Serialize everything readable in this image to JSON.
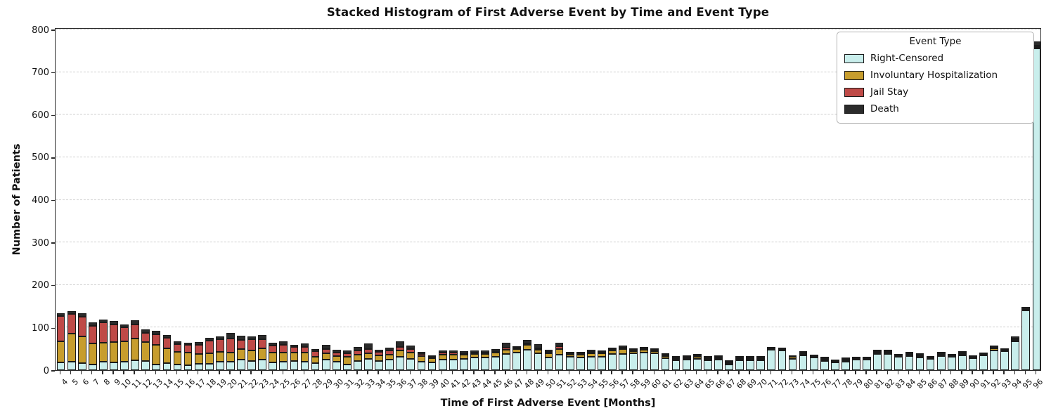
{
  "title": "Stacked Histogram of First Adverse Event by Time and Event Type",
  "xlabel": "Time of First Adverse Event [Months]",
  "ylabel": "Number of Patients",
  "legend": {
    "title": "Event Type",
    "items": [
      {
        "label": "Right-Censored",
        "color": "#c9eeec"
      },
      {
        "label": "Involuntary Hospitalization",
        "color": "#c79d2d"
      },
      {
        "label": "Jail Stay",
        "color": "#bf4a47"
      },
      {
        "label": "Death",
        "color": "#2b2b2b"
      }
    ]
  },
  "chart_data": {
    "type": "bar",
    "stacked": true,
    "title": "Stacked Histogram of First Adverse Event by Time and Event Type",
    "xlabel": "Time of First Adverse Event [Months]",
    "ylabel": "Number of Patients",
    "ylim": [
      0,
      800
    ],
    "y_ticks": [
      0,
      100,
      200,
      300,
      400,
      500,
      600,
      700,
      800
    ],
    "grid": "horizontal-dashed",
    "legend_position": "upper right",
    "x": [
      4,
      5,
      6,
      7,
      8,
      9,
      10,
      11,
      12,
      13,
      14,
      15,
      16,
      17,
      18,
      19,
      20,
      21,
      22,
      23,
      24,
      25,
      26,
      27,
      28,
      29,
      30,
      31,
      32,
      33,
      34,
      35,
      36,
      37,
      38,
      39,
      40,
      41,
      42,
      43,
      44,
      45,
      46,
      47,
      48,
      49,
      50,
      51,
      52,
      53,
      54,
      55,
      56,
      57,
      58,
      59,
      60,
      61,
      62,
      63,
      64,
      65,
      66,
      67,
      68,
      69,
      70,
      71,
      72,
      73,
      74,
      75,
      76,
      77,
      78,
      79,
      80,
      81,
      82,
      83,
      84,
      85,
      86,
      87,
      88,
      89,
      90,
      91,
      92,
      93,
      94,
      95,
      96
    ],
    "series": [
      {
        "name": "Right-Censored",
        "color": "#c9eeec",
        "values": [
          18,
          19,
          17,
          14,
          20,
          18,
          19,
          23,
          21,
          14,
          17,
          14,
          12,
          15,
          15,
          19,
          20,
          24,
          21,
          24,
          18,
          20,
          22,
          20,
          16,
          24,
          19,
          14,
          22,
          26,
          22,
          25,
          31,
          27,
          20,
          18,
          24,
          25,
          26,
          29,
          29,
          31,
          38,
          41,
          48,
          40,
          30,
          36,
          31,
          30,
          32,
          31,
          38,
          38,
          40,
          42,
          40,
          28,
          23,
          24,
          27,
          23,
          24,
          14,
          23,
          23,
          23,
          48,
          47,
          27,
          34,
          30,
          22,
          18,
          20,
          25,
          25,
          38,
          38,
          32,
          33,
          29,
          27,
          33,
          31,
          35,
          28,
          34,
          47,
          44,
          67,
          140,
          755
        ]
      },
      {
        "name": "Involuntary Hospitalization",
        "color": "#c79d2d",
        "values": [
          49,
          66,
          63,
          49,
          44,
          48,
          49,
          51,
          45,
          46,
          35,
          29,
          29,
          23,
          25,
          24,
          22,
          25,
          26,
          27,
          24,
          22,
          20,
          21,
          16,
          15,
          14,
          17,
          14,
          14,
          13,
          12,
          16,
          14,
          13,
          10,
          12,
          11,
          10,
          9,
          9,
          11,
          10,
          8,
          12,
          8,
          10,
          13,
          6,
          6,
          7,
          8,
          9,
          11,
          5,
          6,
          5,
          5,
          4,
          4,
          4,
          4,
          4,
          3,
          2,
          2,
          2,
          3,
          1,
          4,
          3,
          3,
          2,
          2,
          2,
          3,
          2,
          3,
          3,
          2,
          2,
          2,
          2,
          2,
          2,
          3,
          4,
          3,
          4,
          2,
          2,
          1,
          2
        ]
      },
      {
        "name": "Jail Stay",
        "color": "#bf4a47",
        "values": [
          60,
          47,
          46,
          41,
          49,
          42,
          33,
          33,
          22,
          25,
          24,
          18,
          18,
          21,
          29,
          30,
          32,
          22,
          26,
          21,
          16,
          18,
          13,
          14,
          12,
          11,
          8,
          9,
          10,
          10,
          8,
          9,
          7,
          9,
          5,
          3,
          5,
          5,
          4,
          4,
          4,
          2,
          5,
          2,
          2,
          3,
          1,
          7,
          2,
          1,
          3,
          2,
          2,
          2,
          1,
          2,
          2,
          1,
          1,
          1,
          2,
          1,
          1,
          1,
          1,
          1,
          1,
          0,
          0,
          0,
          1,
          0,
          1,
          0,
          1,
          0,
          0,
          1,
          1,
          0,
          1,
          1,
          0,
          1,
          0,
          1,
          0,
          0,
          1,
          0,
          1,
          0,
          1
        ]
      },
      {
        "name": "Death",
        "color": "#2b2b2b",
        "values": [
          6,
          7,
          8,
          9,
          6,
          7,
          6,
          11,
          7,
          7,
          6,
          6,
          6,
          7,
          7,
          7,
          13,
          10,
          7,
          10,
          6,
          8,
          5,
          8,
          5,
          10,
          7,
          6,
          9,
          12,
          5,
          7,
          13,
          7,
          5,
          4,
          5,
          5,
          5,
          4,
          4,
          4,
          11,
          4,
          8,
          9,
          5,
          8,
          3,
          3,
          5,
          3,
          3,
          6,
          3,
          4,
          2,
          2,
          1,
          2,
          3,
          2,
          2,
          1,
          1,
          1,
          1,
          2,
          2,
          2,
          3,
          2,
          1,
          1,
          1,
          3,
          2,
          3,
          4,
          2,
          3,
          2,
          2,
          2,
          2,
          2,
          2,
          2,
          3,
          3,
          5,
          5,
          10
        ]
      }
    ]
  }
}
